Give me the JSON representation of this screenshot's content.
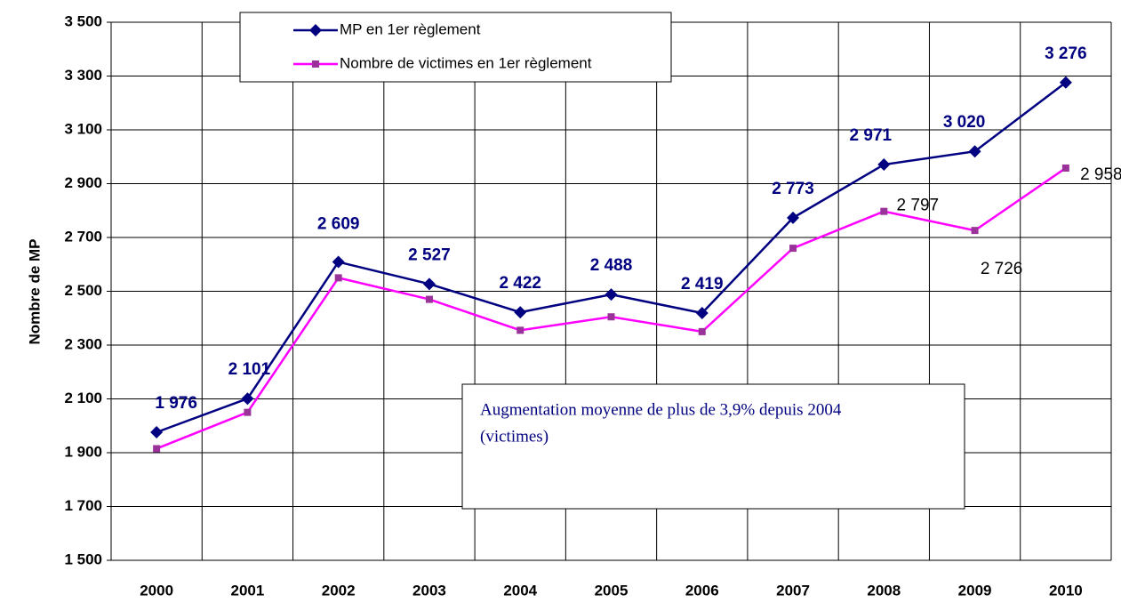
{
  "chart_data": {
    "type": "line",
    "y_label": "Nombre de MP",
    "categories": [
      "2000",
      "2001",
      "2002",
      "2003",
      "2004",
      "2005",
      "2006",
      "2007",
      "2008",
      "2009",
      "2010"
    ],
    "series": [
      {
        "name": "MP en 1er règlement",
        "color": "#000080",
        "marker": "diamond",
        "values": [
          1976,
          2101,
          2609,
          2527,
          2422,
          2488,
          2419,
          2773,
          2971,
          3020,
          3276
        ],
        "value_labels": [
          "1 976",
          "2 101",
          "2 609",
          "2 527",
          "2 422",
          "2 488",
          "2 419",
          "2 773",
          "2 971",
          "3 020",
          "3 276"
        ]
      },
      {
        "name": "Nombre de victimes en 1er règlement",
        "color": "#ff00ff",
        "marker_color": "#993399",
        "marker": "square",
        "values": [
          1915,
          2050,
          2550,
          2470,
          2355,
          2405,
          2350,
          2660,
          2797,
          2726,
          2958
        ],
        "value_labels": [
          null,
          null,
          null,
          null,
          null,
          null,
          null,
          null,
          "2 797",
          "2 726",
          "2 958"
        ]
      }
    ],
    "ylim": [
      1500,
      3500
    ],
    "yticks": [
      {
        "value": 1500,
        "label": "1 500"
      },
      {
        "value": 1700,
        "label": "1 700"
      },
      {
        "value": 1900,
        "label": "1 900"
      },
      {
        "value": 2100,
        "label": "2 100"
      },
      {
        "value": 2300,
        "label": "2 300"
      },
      {
        "value": 2500,
        "label": "2 500"
      },
      {
        "value": 2700,
        "label": "2 700"
      },
      {
        "value": 2900,
        "label": "2 900"
      },
      {
        "value": 3100,
        "label": "3 100"
      },
      {
        "value": 3300,
        "label": "3 300"
      },
      {
        "value": 3500,
        "label": "3 500"
      }
    ],
    "grid": true,
    "annotation": [
      "Augmentation moyenne de plus de 3,9% depuis 2004",
      " (victimes)"
    ]
  }
}
